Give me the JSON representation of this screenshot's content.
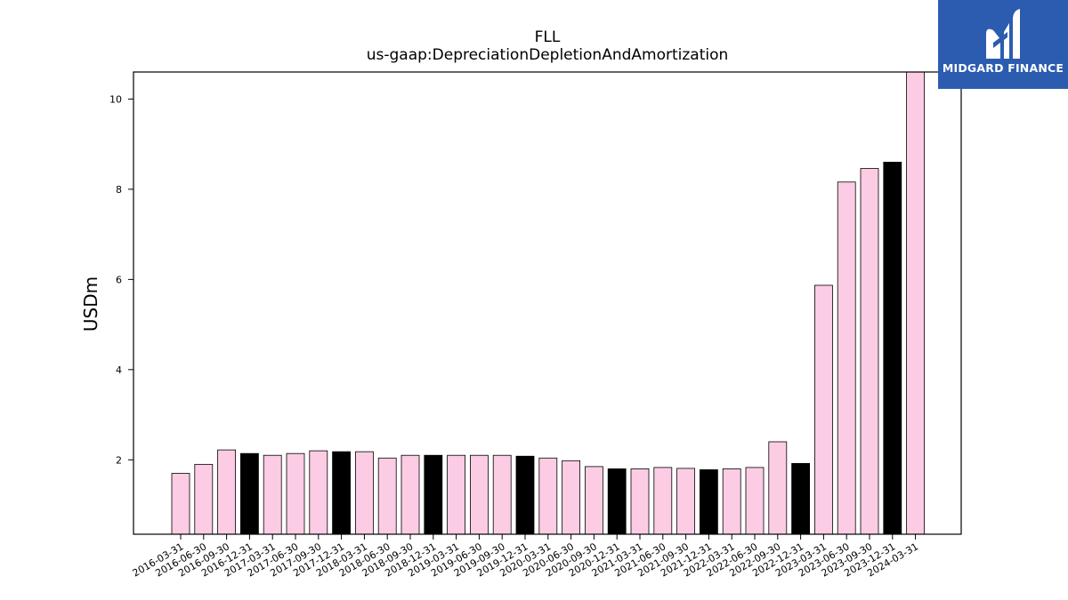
{
  "chart_data": {
    "type": "bar",
    "title": "FLL",
    "subtitle": "us-gaap:DepreciationDepletionAndAmortization",
    "ylabel": "USDm",
    "xlabel": "",
    "ylim": [
      0.35,
      10.6
    ],
    "yticks": [
      2,
      4,
      6,
      8,
      10
    ],
    "grid": false,
    "categories": [
      "2016-03-31",
      "2016-06-30",
      "2016-09-30",
      "2016-12-31",
      "2017-03-31",
      "2017-06-30",
      "2017-09-30",
      "2017-12-31",
      "2018-03-31",
      "2018-06-30",
      "2018-09-30",
      "2018-12-31",
      "2019-03-31",
      "2019-06-30",
      "2019-09-30",
      "2019-12-31",
      "2020-03-31",
      "2020-06-30",
      "2020-09-30",
      "2020-12-31",
      "2021-03-31",
      "2021-06-30",
      "2021-09-30",
      "2021-12-31",
      "2022-03-31",
      "2022-06-30",
      "2022-09-30",
      "2022-12-31",
      "2023-03-31",
      "2023-06-30",
      "2023-09-30",
      "2023-12-31",
      "2024-03-31"
    ],
    "values": [
      1.7,
      1.9,
      2.22,
      2.14,
      2.1,
      2.14,
      2.2,
      2.18,
      2.18,
      2.04,
      2.1,
      2.1,
      2.1,
      2.1,
      2.1,
      2.08,
      2.04,
      1.98,
      1.85,
      1.8,
      1.8,
      1.83,
      1.81,
      1.78,
      1.8,
      1.83,
      2.4,
      1.92,
      5.87,
      8.16,
      8.46,
      8.6,
      10.6
    ],
    "bar_colors": {
      "quarter": "#fccce4",
      "year_end": "#000000"
    },
    "year_end_flags": [
      false,
      false,
      false,
      true,
      false,
      false,
      false,
      true,
      false,
      false,
      false,
      true,
      false,
      false,
      false,
      true,
      false,
      false,
      false,
      true,
      false,
      false,
      false,
      true,
      false,
      false,
      false,
      true,
      false,
      false,
      false,
      true,
      false
    ]
  },
  "logo": {
    "text": "MIDGARD FINANCE",
    "icon": "midgard-logo-icon",
    "color": "#2b5cb0"
  }
}
